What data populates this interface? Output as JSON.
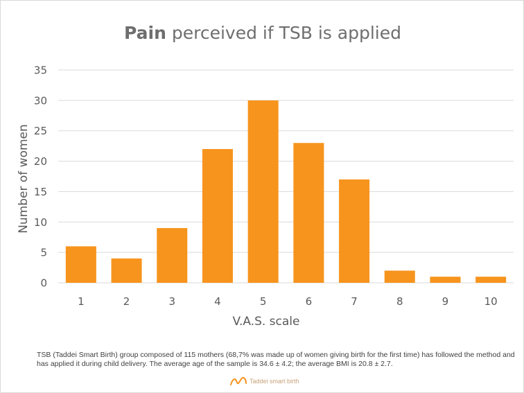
{
  "title": {
    "bold": "Pain",
    "rest": " perceived if TSB is applied"
  },
  "footnote": "TSB (Taddei Smart Birth) group composed of 115 mothers (68,7% was made up of women giving birth for the first time) has followed the method and has applied it during child delivery. The average age of the sample is 34.6 ± 4.2; the average BMI is 20.8 ± 2.7.",
  "logo": {
    "text": "Taddei smart birth",
    "icon": "taddei-logo-icon"
  },
  "colors": {
    "bar": "#f7941d",
    "grid": "#d9d9d9",
    "text": "#595959"
  },
  "chart_data": {
    "type": "bar",
    "title": "Pain perceived if TSB is applied",
    "xlabel": "V.A.S. scale",
    "ylabel": "Number of women",
    "categories": [
      "1",
      "2",
      "3",
      "4",
      "5",
      "6",
      "7",
      "8",
      "9",
      "10"
    ],
    "values": [
      6,
      4,
      9,
      22,
      30,
      23,
      17,
      2,
      1,
      1
    ],
    "ylim": [
      0,
      35
    ],
    "yticks": [
      0,
      5,
      10,
      15,
      20,
      25,
      30,
      35
    ],
    "grid": true,
    "legend": "none"
  }
}
